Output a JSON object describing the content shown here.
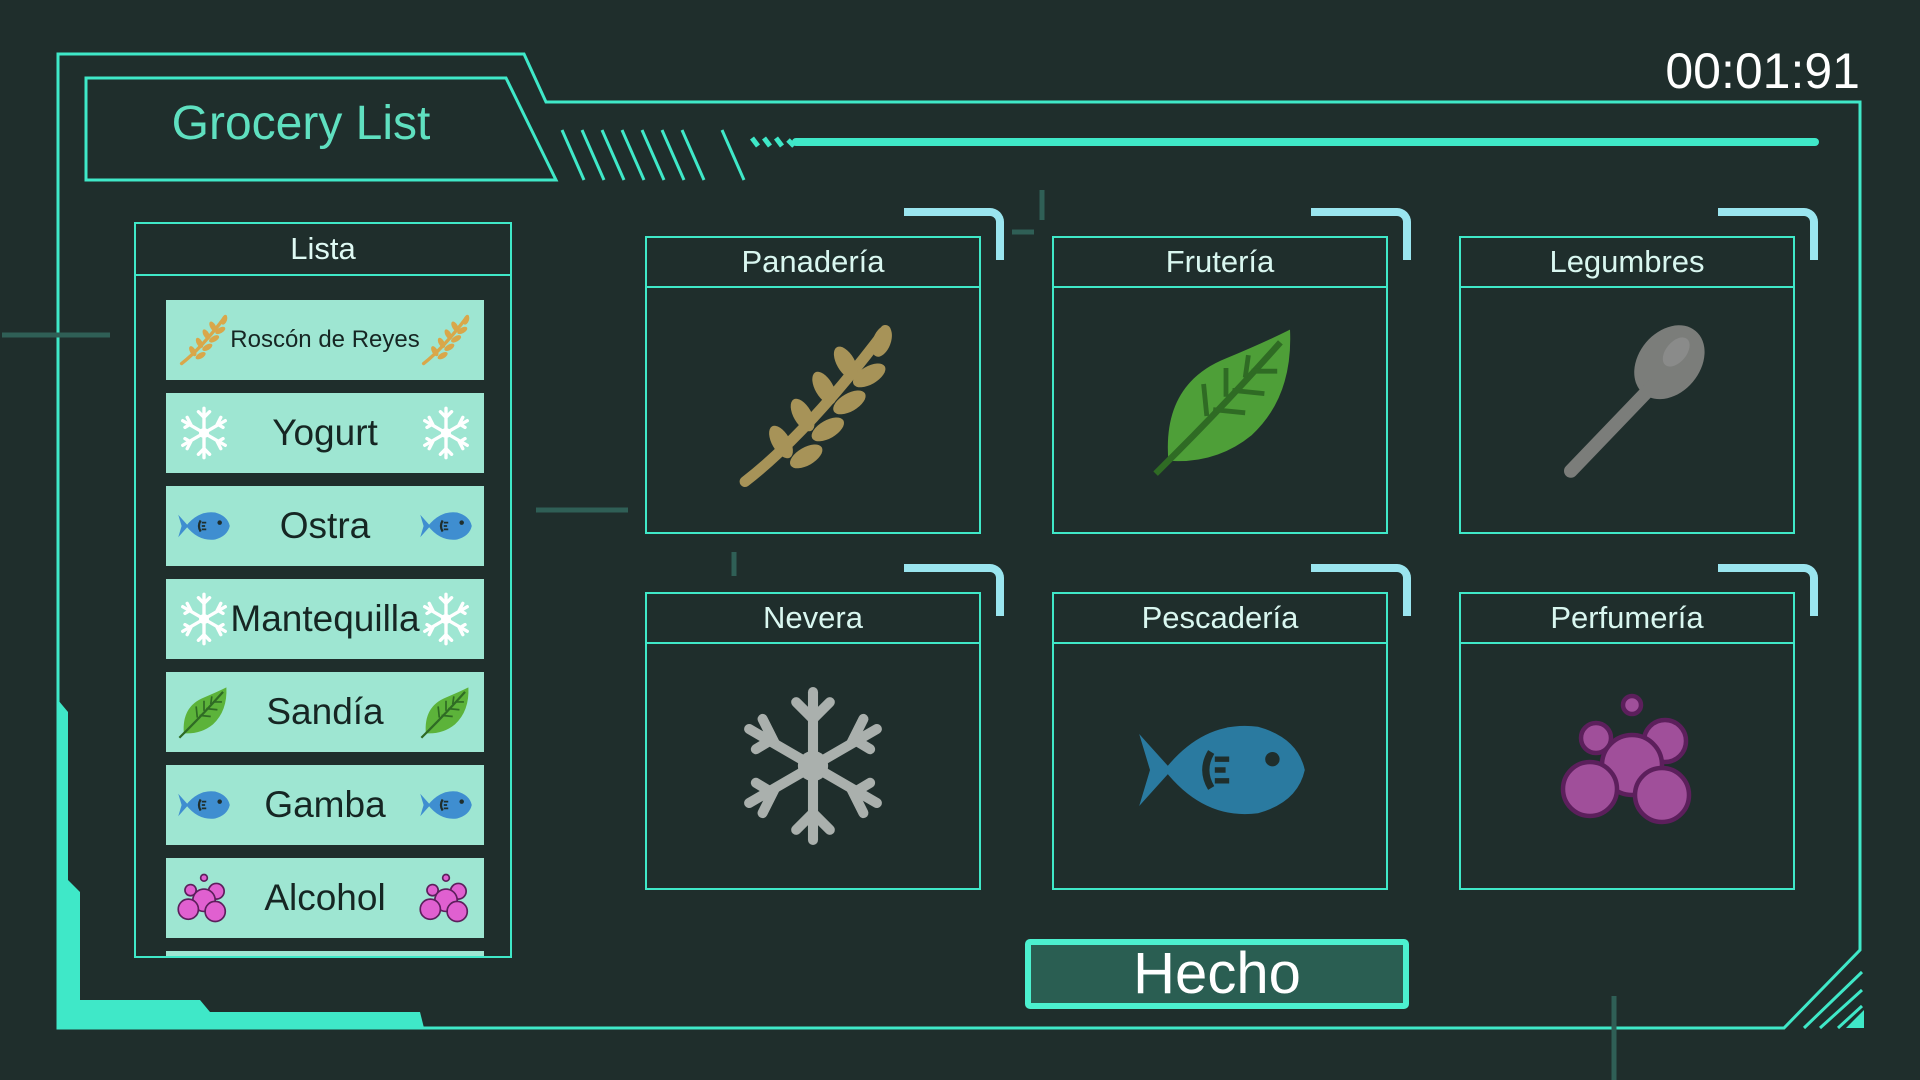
{
  "header": {
    "title": "Grocery List",
    "timer": "00:01:91"
  },
  "list": {
    "heading": "Lista",
    "items": [
      {
        "label": "Roscón de Reyes",
        "icon": "wheat-icon"
      },
      {
        "label": "Yogurt",
        "icon": "snowflake-icon"
      },
      {
        "label": "Ostra",
        "icon": "fish-icon"
      },
      {
        "label": "Mantequilla",
        "icon": "snowflake-icon"
      },
      {
        "label": "Sandía",
        "icon": "leaf-icon"
      },
      {
        "label": "Gamba",
        "icon": "fish-icon"
      },
      {
        "label": "Alcohol",
        "icon": "bubbles-icon"
      }
    ]
  },
  "categories": [
    {
      "label": "Panadería",
      "icon": "wheat-icon"
    },
    {
      "label": "Frutería",
      "icon": "leaf-icon"
    },
    {
      "label": "Legumbres",
      "icon": "spoon-icon"
    },
    {
      "label": "Nevera",
      "icon": "snowflake-icon"
    },
    {
      "label": "Pescadería",
      "icon": "fish-icon"
    },
    {
      "label": "Perfumería",
      "icon": "bubbles-icon"
    }
  ],
  "actions": {
    "done_label": "Hecho"
  },
  "colors": {
    "background": "#1f2e2c",
    "accent": "#3fe8c8",
    "list_item": "#9ee6d2",
    "tab": "#9ae5ef",
    "button": "#2a5e52"
  }
}
